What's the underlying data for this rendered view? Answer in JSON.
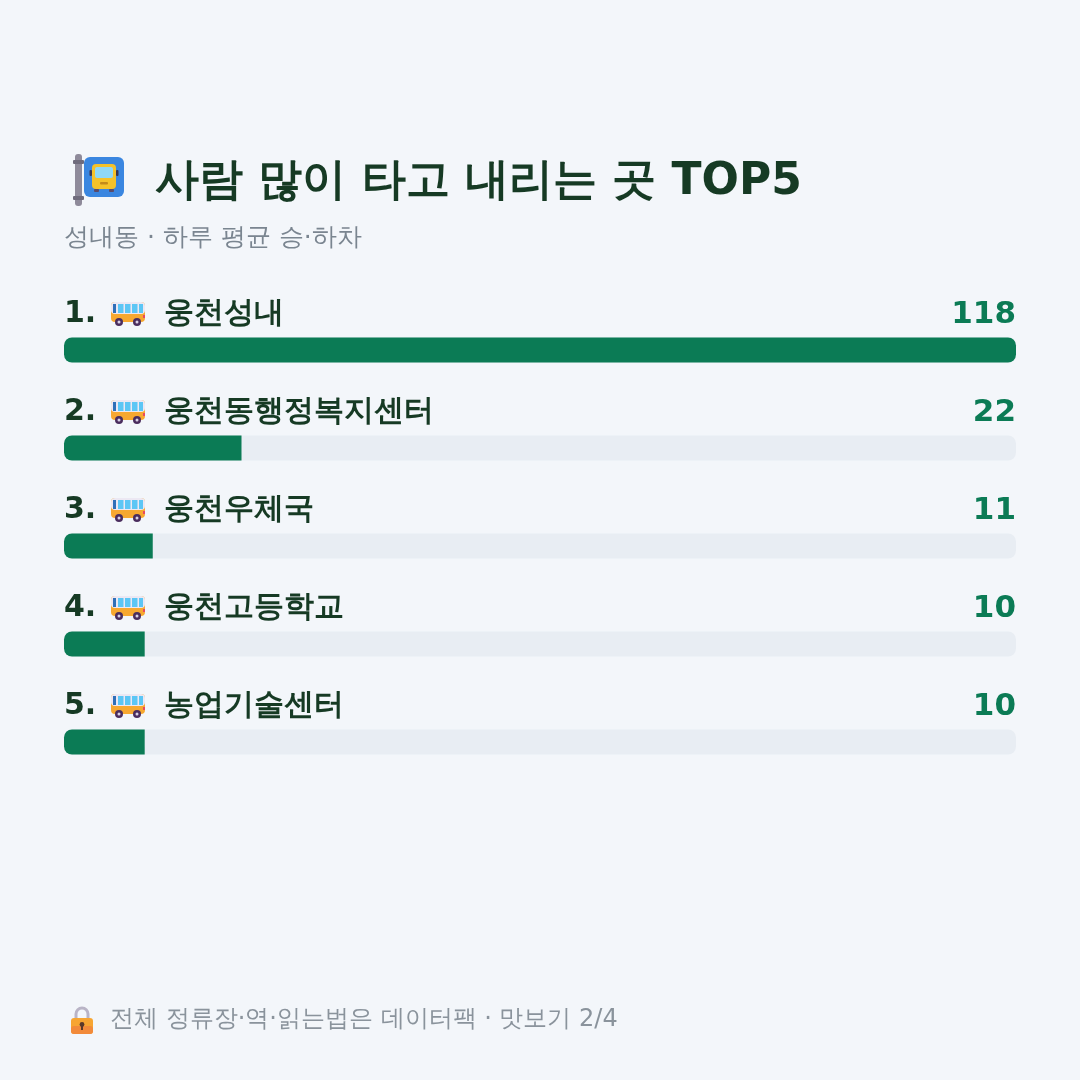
{
  "chart_data": {
    "type": "bar",
    "orientation": "horizontal",
    "title": "사람 많이 타고 내리는 곳 TOP5",
    "subtitle": "성내동 · 하루 평균 승·하차",
    "categories": [
      "1. 웅천성내",
      "2. 웅천동행정복지센터",
      "3. 웅천우체국",
      "4. 웅천고등학교",
      "5. 농업기술센터"
    ],
    "values": [
      118,
      22,
      11,
      10,
      10
    ],
    "color": "#0b7b55",
    "xlim": [
      0,
      118
    ],
    "tick_labels": "y",
    "data_labels": true,
    "annotations": [
      "전체 정류장·역·읽는법은 데이터팩 · 맛보기 2/4"
    ]
  }
}
